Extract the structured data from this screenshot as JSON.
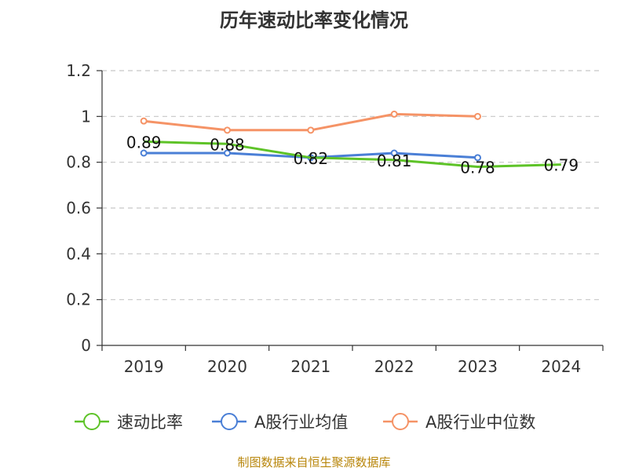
{
  "chart_data": {
    "type": "line",
    "title": "历年速动比率变化情况",
    "categories": [
      "2019",
      "2020",
      "2021",
      "2022",
      "2023",
      "2024"
    ],
    "ylim": [
      0,
      1.2
    ],
    "yticks": [
      0,
      0.2,
      0.4,
      0.6,
      0.8,
      1,
      1.2
    ],
    "ytick_labels": [
      "0",
      "0.2",
      "0.4",
      "0.6",
      "0.8",
      "1",
      "1.2"
    ],
    "grid": true,
    "legend_position": "bottom",
    "series": [
      {
        "name": "速动比率",
        "color": "#5ec328",
        "values": [
          0.89,
          0.88,
          0.82,
          0.81,
          0.78,
          0.79
        ],
        "labels": [
          "0.89",
          "0.88",
          "0.82",
          "0.81",
          "0.78",
          "0.79"
        ],
        "show_markers": false
      },
      {
        "name": "A股行业均值",
        "color": "#4a7fd6",
        "values": [
          0.84,
          0.84,
          0.82,
          0.84,
          0.82,
          null
        ],
        "show_markers": true
      },
      {
        "name": "A股行业中位数",
        "color": "#f59366",
        "values": [
          0.98,
          0.94,
          0.94,
          1.01,
          1.0,
          null
        ],
        "show_markers": true
      }
    ]
  },
  "source_text": "制图数据来自恒生聚源数据库"
}
